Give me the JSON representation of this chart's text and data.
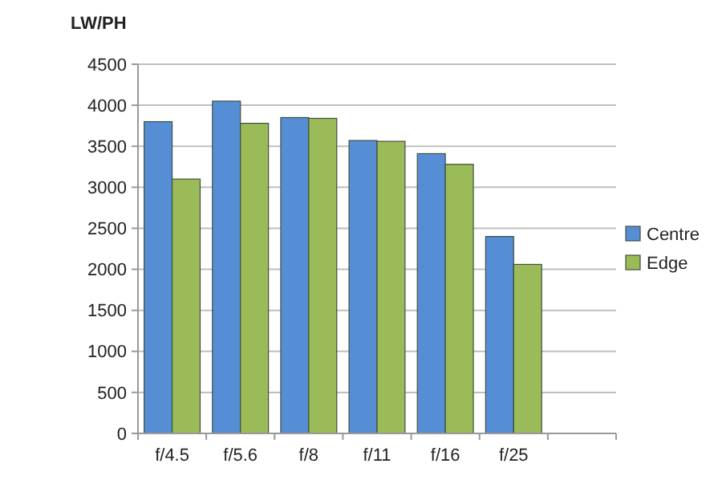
{
  "chart_data": {
    "type": "bar",
    "ylabel": "LW/PH",
    "categories": [
      "f/4.5",
      "f/5.6",
      "f/8",
      "f/11",
      "f/16",
      "f/25",
      null
    ],
    "series": [
      {
        "name": "Centre",
        "color": "#558ed5",
        "values": [
          3800,
          4050,
          3850,
          3570,
          3410,
          2400,
          null
        ]
      },
      {
        "name": "Edge",
        "color": "#9bbb59",
        "values": [
          3100,
          3780,
          3840,
          3560,
          3280,
          2060,
          null
        ]
      }
    ],
    "ylim": [
      0,
      4500
    ],
    "yticks": [
      0,
      500,
      1000,
      1500,
      2000,
      2500,
      3000,
      3500,
      4000,
      4500
    ],
    "grid": "y",
    "legend": "right"
  }
}
